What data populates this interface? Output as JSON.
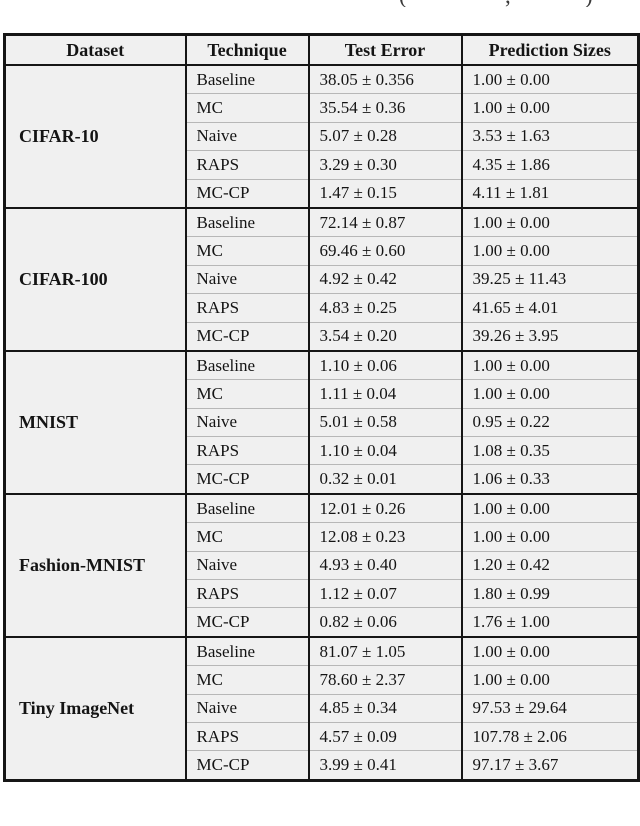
{
  "caption_fragments": [
    "(",
    ",",
    ")"
  ],
  "table": {
    "columns": [
      "Dataset",
      "Technique",
      "Test Error",
      "Prediction Sizes"
    ],
    "sections": [
      {
        "dataset": "CIFAR-10",
        "rows": [
          {
            "technique": "Baseline",
            "test_error": "38.05 ± 0.356",
            "prediction_size": "1.00 ± 0.00"
          },
          {
            "technique": "MC",
            "test_error": "35.54 ± 0.36",
            "prediction_size": "1.00 ± 0.00"
          },
          {
            "technique": "Naive",
            "test_error": "5.07 ± 0.28",
            "prediction_size": "3.53 ± 1.63"
          },
          {
            "technique": "RAPS",
            "test_error": "3.29 ± 0.30",
            "prediction_size": "4.35 ± 1.86"
          },
          {
            "technique": "MC-CP",
            "test_error": "1.47 ± 0.15",
            "prediction_size": "4.11 ± 1.81"
          }
        ]
      },
      {
        "dataset": "CIFAR-100",
        "rows": [
          {
            "technique": "Baseline",
            "test_error": "72.14 ± 0.87",
            "prediction_size": "1.00 ± 0.00"
          },
          {
            "technique": "MC",
            "test_error": "69.46 ± 0.60",
            "prediction_size": "1.00 ± 0.00"
          },
          {
            "technique": "Naive",
            "test_error": "4.92 ± 0.42",
            "prediction_size": "39.25 ± 11.43"
          },
          {
            "technique": "RAPS",
            "test_error": "4.83 ± 0.25",
            "prediction_size": "41.65 ± 4.01"
          },
          {
            "technique": "MC-CP",
            "test_error": "3.54 ± 0.20",
            "prediction_size": "39.26 ± 3.95"
          }
        ]
      },
      {
        "dataset": "MNIST",
        "rows": [
          {
            "technique": "Baseline",
            "test_error": "1.10 ± 0.06",
            "prediction_size": "1.00 ± 0.00"
          },
          {
            "technique": "MC",
            "test_error": "1.11 ± 0.04",
            "prediction_size": "1.00 ± 0.00"
          },
          {
            "technique": "Naive",
            "test_error": "5.01 ± 0.58",
            "prediction_size": "0.95 ± 0.22"
          },
          {
            "technique": "RAPS",
            "test_error": "1.10 ± 0.04",
            "prediction_size": "1.08 ± 0.35"
          },
          {
            "technique": "MC-CP",
            "test_error": "0.32 ± 0.01",
            "prediction_size": "1.06 ± 0.33"
          }
        ]
      },
      {
        "dataset": "Fashion-MNIST",
        "rows": [
          {
            "technique": "Baseline",
            "test_error": "12.01 ± 0.26",
            "prediction_size": "1.00 ± 0.00"
          },
          {
            "technique": "MC",
            "test_error": "12.08 ± 0.23",
            "prediction_size": "1.00 ± 0.00"
          },
          {
            "technique": "Naive",
            "test_error": "4.93 ± 0.40",
            "prediction_size": "1.20 ± 0.42"
          },
          {
            "technique": "RAPS",
            "test_error": "1.12 ± 0.07",
            "prediction_size": "1.80 ± 0.99"
          },
          {
            "technique": "MC-CP",
            "test_error": "0.82 ± 0.06",
            "prediction_size": "1.76 ± 1.00"
          }
        ]
      },
      {
        "dataset": "Tiny ImageNet",
        "rows": [
          {
            "technique": "Baseline",
            "test_error": "81.07 ± 1.05",
            "prediction_size": "1.00 ± 0.00"
          },
          {
            "technique": "MC",
            "test_error": "78.60 ± 2.37",
            "prediction_size": "1.00 ± 0.00"
          },
          {
            "technique": "Naive",
            "test_error": "4.85 ± 0.34",
            "prediction_size": "97.53 ± 29.64"
          },
          {
            "technique": "RAPS",
            "test_error": "4.57 ± 0.09",
            "prediction_size": "107.78 ± 2.06"
          },
          {
            "technique": "MC-CP",
            "test_error": "3.99 ± 0.41",
            "prediction_size": "97.17 ± 3.67"
          }
        ]
      }
    ]
  },
  "colors": {
    "cell_background": "#f0f0f0",
    "border_dark": "#161616",
    "border_light": "#b7b7b7",
    "text": "#141414",
    "page_background": "#ffffff"
  }
}
